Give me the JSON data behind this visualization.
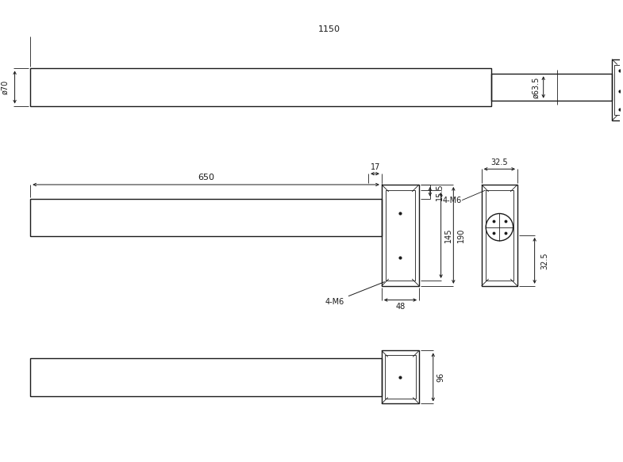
{
  "bg_color": "#ffffff",
  "lc": "#1a1a1a",
  "lw": 1.0,
  "tlw": 0.6,
  "fig_w": 7.85,
  "fig_h": 5.83,
  "annotations": {
    "1150": "1150",
    "phi63": "ø63.5",
    "phi70": "ø70",
    "650": "650",
    "17": "17",
    "15_5": "15.5",
    "145": "145",
    "190": "190",
    "4M6_side": "4-M6",
    "48": "48",
    "32_5_top": "32.5",
    "32_5_bot": "32.5",
    "4M6_end": "4-M6",
    "96": "96"
  }
}
